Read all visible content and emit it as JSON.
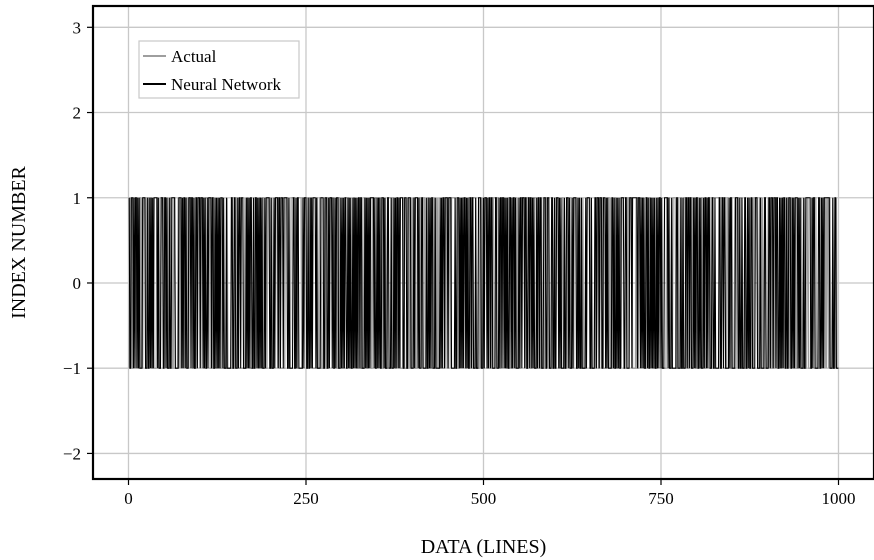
{
  "chart_data": {
    "type": "line",
    "title": "",
    "xlabel": "DATA (LINES)",
    "ylabel": "INDEX NUMBER",
    "xlim": [
      -50,
      1050
    ],
    "ylim": [
      -2.3,
      3.25
    ],
    "grid": true,
    "legend_position": "top-left",
    "x_ticks": [
      0,
      250,
      500,
      750,
      1000
    ],
    "x_tick_labels": [
      "0",
      "250",
      "500",
      "750",
      "1000"
    ],
    "y_ticks": [
      3,
      2,
      1,
      0,
      -1,
      -2
    ],
    "y_tick_labels": [
      "3",
      "2",
      "1",
      "0",
      "−1",
      "−2"
    ],
    "series_x_range": [
      1,
      1000
    ],
    "series_values": [
      -1,
      1
    ],
    "series": [
      {
        "name": "Actual",
        "color": "#9e9e9e"
      },
      {
        "name": "Neural Network",
        "color": "#000000"
      }
    ]
  }
}
